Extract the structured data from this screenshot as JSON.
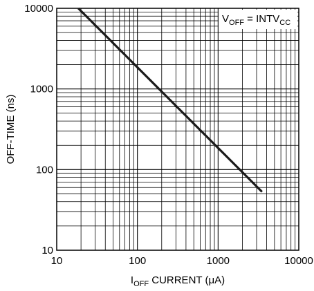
{
  "chart_data": {
    "type": "line",
    "x_scale": "log",
    "y_scale": "log",
    "xlim": [
      10,
      10000
    ],
    "ylim": [
      10,
      10000
    ],
    "x_ticks": [
      10,
      100,
      1000,
      10000
    ],
    "y_ticks": [
      10,
      100,
      1000,
      10000
    ],
    "x_tick_labels": [
      "10",
      "100",
      "1000",
      "10000"
    ],
    "y_tick_labels": [
      "10",
      "100",
      "1000",
      "10000"
    ],
    "xlabel": {
      "prefix": "I",
      "subscript": "OFF",
      "suffix": " CURRENT (μA)"
    },
    "ylabel": "OFF-TIME (ns)",
    "grid": true,
    "annotation": {
      "prefix": "V",
      "subscript1": "OFF",
      "middle": " = INTV",
      "subscript2": "CC",
      "placement": "top-right"
    },
    "series": [
      {
        "x": [
          18.5,
          3500
        ],
        "y": [
          10000,
          53
        ],
        "color": "#1a1a1a"
      }
    ]
  }
}
